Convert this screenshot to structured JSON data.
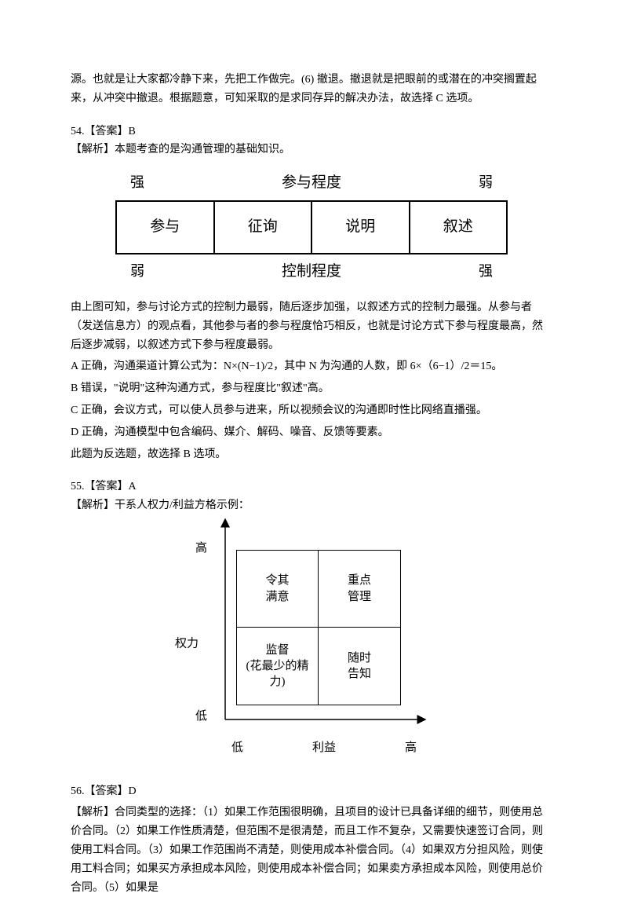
{
  "intro_paras": [
    "源。也就是让大家都冷静下来，先把工作做完。(6) 撤退。撤退就是把眼前的或潜在的冲突搁置起来，从冲突中撤退。根据题意，可知采取的是求同存异的解决办法，故选择 C 选项。"
  ],
  "q54": {
    "answer_line": "54.【答案】B",
    "analysis_intro": "【解析】本题考查的是沟通管理的基础知识。",
    "table": {
      "top_left": "强",
      "top_center": "参与程度",
      "top_right": "弱",
      "cells": [
        "参与",
        "征询",
        "说明",
        "叙述"
      ],
      "bottom_left": "弱",
      "bottom_center": "控制程度",
      "bottom_right": "强",
      "border_color": "#000000",
      "cell_fontsize": 19,
      "label_fontsize": 18
    },
    "after_paras": [
      "由上图可知，参与讨论方式的控制力最弱，随后逐步加强，以叙述方式的控制力最强。从参与者（发送信息方）的观点看，其他参与者的参与程度恰巧相反，也就是讨论方式下参与程度最高，然后逐步减弱，以叙述方式下参与程度最弱。",
      "A 正确，沟通渠道计算公式为：N×(N−1)/2，其中 N 为沟通的人数，即 6×（6−1）/2＝15。",
      "B 错误，\"说明\"这种沟通方式，参与程度比\"叙述\"高。",
      "C 正确，会议方式，可以使人员参与进来，所以视频会议的沟通即时性比网络直播强。",
      "D 正确，沟通模型中包含编码、媒介、解码、噪音、反馈等要素。",
      "此题为反选题，故选择 B 选项。"
    ]
  },
  "q55": {
    "answer_line": "55.【答案】A",
    "analysis_intro": "【解析】干系人权力/利益方格示例：",
    "quadrant": {
      "y_label": "权力",
      "y_high": "高",
      "y_low": "低",
      "x_label": "利益",
      "x_low": "低",
      "x_high": "高",
      "cells": {
        "top_left": "令其\n满意",
        "top_right": "重点\n管理",
        "bottom_left": "监督\n(花最少的精力)",
        "bottom_right": "随时\n告知"
      },
      "border_color": "#000000",
      "arrow_color": "#000000",
      "fontsize": 15
    }
  },
  "q56": {
    "answer_line": "56.【答案】D",
    "analysis": "【解析】合同类型的选择：（1）如果工作范围很明确，且项目的设计已具备详细的细节，则使用总价合同。（2）如果工作性质清楚，但范围不是很清楚，而且工作不复杂，又需要快速签订合同，则使用工料合同。（3）如果工作范围尚不清楚，则使用成本补偿合同。（4）如果双方分担风险，则使用工料合同；如果买方承担成本风险，则使用成本补偿合同；如果卖方承担成本风险，则使用总价合同。（5）如果是"
  }
}
